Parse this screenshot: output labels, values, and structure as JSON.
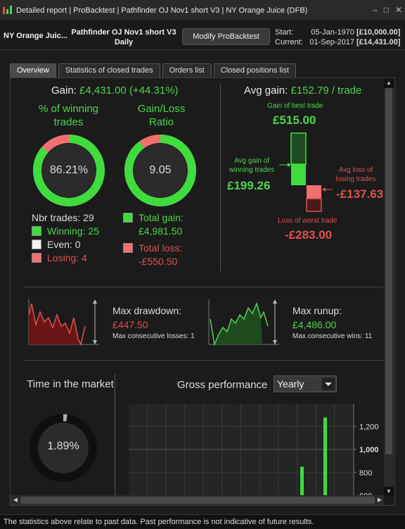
{
  "window": {
    "title": "Detailed report | ProBacktest | Pathfinder OJ Nov1 short V3 | NY Orange Juice (DFB)",
    "controls": [
      "–",
      "□",
      "✕"
    ]
  },
  "header": {
    "instrument": "NY Orange Juic...",
    "strategy_line1": "Pathfinder OJ Nov1 short V3",
    "strategy_line2": "Daily",
    "modify_label": "Modify ProBacktest",
    "start_label": "Start:",
    "start_date": "05-Jan-1970",
    "start_value": "[£10,000.00]",
    "current_label": "Current:",
    "current_date": "01-Sep-2017",
    "current_value": "[£14,431.00]"
  },
  "tabs": [
    {
      "label": "Overview",
      "active": true
    },
    {
      "label": "Statistics of closed trades"
    },
    {
      "label": "Orders list"
    },
    {
      "label": "Closed positions list"
    }
  ],
  "overview": {
    "gain_label": "Gain:",
    "gain_value": "£4,431.00 (+44.31%)",
    "winning_title": "% of winning trades",
    "winning_pct": "86.21%",
    "winning_fraction": 0.8621,
    "gl_title": "Gain/Loss Ratio",
    "gl_ratio": "9.05",
    "gl_fraction": 0.9005,
    "nbr_trades": "Nbr trades: 29",
    "winning": "Winning: 25",
    "even": "Even: 0",
    "losing": "Losing: 4",
    "total_gain_label": "Total gain:",
    "total_gain": "£4,981.50",
    "total_loss_label": "Total loss:",
    "total_loss": "-£550.50"
  },
  "avg": {
    "label": "Avg gain:",
    "value": "£152.79 / trade",
    "best_label": "Gain of best trade",
    "best_value": "£515.00",
    "avg_win_label": "Avg gain of winning trades",
    "avg_win_value": "£199.26",
    "avg_loss_label": "Avg loss of losing trades",
    "avg_loss_value": "-£137.63",
    "worst_label": "Loss of worst trade",
    "worst_value": "-£283.00"
  },
  "drawdown": {
    "label": "Max drawdown:",
    "value": "£447.50",
    "consec": "Max consecutive losses: 1"
  },
  "runup": {
    "label": "Max runup:",
    "value": "£4,486.00",
    "consec": "Max consecutive wins: 11"
  },
  "market": {
    "title": "Time in the market",
    "value": "1.89%",
    "fraction": 0.0189
  },
  "gross": {
    "title": "Gross performance",
    "select": "Yearly"
  },
  "chart_data": {
    "type": "bar",
    "title": "Gross performance",
    "y_ticks": [
      "1,200",
      "1,000",
      "800",
      "600"
    ],
    "ylim": [
      590,
      1400
    ],
    "values": [
      850,
      1280
    ]
  },
  "footer": {
    "text": "The statistics above relate to past data. Past performance is not indicative of future results."
  },
  "colors": {
    "green": "#4cd44c",
    "red": "#e05050",
    "bright_green": "#3fdc3f"
  }
}
